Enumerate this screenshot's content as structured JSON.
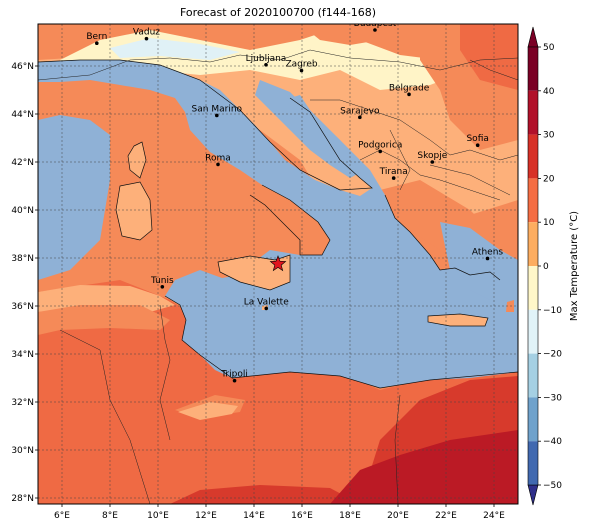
{
  "title": "Forecast of 2020100700 (f144-168)",
  "map": {
    "lon_range": [
      5,
      25
    ],
    "lat_range": [
      27.75,
      47.75
    ],
    "lon_ticks": [
      {
        "value": 6,
        "label": "6°E"
      },
      {
        "value": 8,
        "label": "8°E"
      },
      {
        "value": 10,
        "label": "10°E"
      },
      {
        "value": 12,
        "label": "12°E"
      },
      {
        "value": 14,
        "label": "14°E"
      },
      {
        "value": 16,
        "label": "16°E"
      },
      {
        "value": 18,
        "label": "18°E"
      },
      {
        "value": 20,
        "label": "20°E"
      },
      {
        "value": 22,
        "label": "22°E"
      },
      {
        "value": 24,
        "label": "24°E"
      }
    ],
    "lat_ticks": [
      {
        "value": 28,
        "label": "28°N"
      },
      {
        "value": 30,
        "label": "30°N"
      },
      {
        "value": 32,
        "label": "32°N"
      },
      {
        "value": 34,
        "label": "34°N"
      },
      {
        "value": 36,
        "label": "36°N"
      },
      {
        "value": 38,
        "label": "38°N"
      },
      {
        "value": 40,
        "label": "40°N"
      },
      {
        "value": 42,
        "label": "42°N"
      },
      {
        "value": 44,
        "label": "44°N"
      },
      {
        "value": 46,
        "label": "46°N"
      }
    ],
    "grid": true,
    "cities": [
      {
        "name": "Bern",
        "lon": 7.45,
        "lat": 46.95
      },
      {
        "name": "Vaduz",
        "lon": 9.52,
        "lat": 47.14
      },
      {
        "name": "Budapest",
        "lon": 19.04,
        "lat": 47.5
      },
      {
        "name": "Ljubljana",
        "lon": 14.5,
        "lat": 46.05
      },
      {
        "name": "Zagreb",
        "lon": 15.98,
        "lat": 45.81
      },
      {
        "name": "San Marino",
        "lon": 12.45,
        "lat": 43.94
      },
      {
        "name": "Sarajevo",
        "lon": 18.41,
        "lat": 43.86
      },
      {
        "name": "Belgrade",
        "lon": 20.46,
        "lat": 44.82
      },
      {
        "name": "Roma",
        "lon": 12.5,
        "lat": 41.9
      },
      {
        "name": "Podgorica",
        "lon": 19.26,
        "lat": 42.44
      },
      {
        "name": "Skopje",
        "lon": 21.43,
        "lat": 42.0
      },
      {
        "name": "Sofia",
        "lon": 23.32,
        "lat": 42.7
      },
      {
        "name": "Tirana",
        "lon": 19.82,
        "lat": 41.33
      },
      {
        "name": "Athens",
        "lon": 23.73,
        "lat": 37.98
      },
      {
        "name": "Tunis",
        "lon": 10.18,
        "lat": 36.8
      },
      {
        "name": "La Valette",
        "lon": 14.51,
        "lat": 35.9
      },
      {
        "name": "Tripoli",
        "lon": 13.19,
        "lat": 32.89
      }
    ],
    "marker": {
      "type": "star",
      "lon": 15.0,
      "lat": 37.75,
      "color": "#e0141e"
    }
  },
  "colorbar": {
    "label": "Max Temperature (°C)",
    "range": [
      -50,
      50
    ],
    "ticks": [
      "50",
      "40",
      "30",
      "20",
      "10",
      "0",
      "−10",
      "−20",
      "−30",
      "−40",
      "−50"
    ],
    "colors_top_to_bottom": [
      "#7a0025",
      "#b1112a",
      "#d73127",
      "#f56d43",
      "#fdad60",
      "#fff7c9",
      "#e1f3f8",
      "#a5d0e3",
      "#6fa2cc",
      "#4169b0",
      "#2f2f8a"
    ]
  },
  "palette": {
    "sea": "#8fb1d6",
    "band_20_25": "#ef6a44",
    "band_25_30": "#f58a58",
    "band_15_20": "#fdb07a",
    "band_10_15": "#fdd49a",
    "band_5_10": "#fff4c7",
    "band_0_5": "#e0f1f6",
    "band_30_35": "#d73a2c",
    "band_35_40": "#bb1a25"
  }
}
